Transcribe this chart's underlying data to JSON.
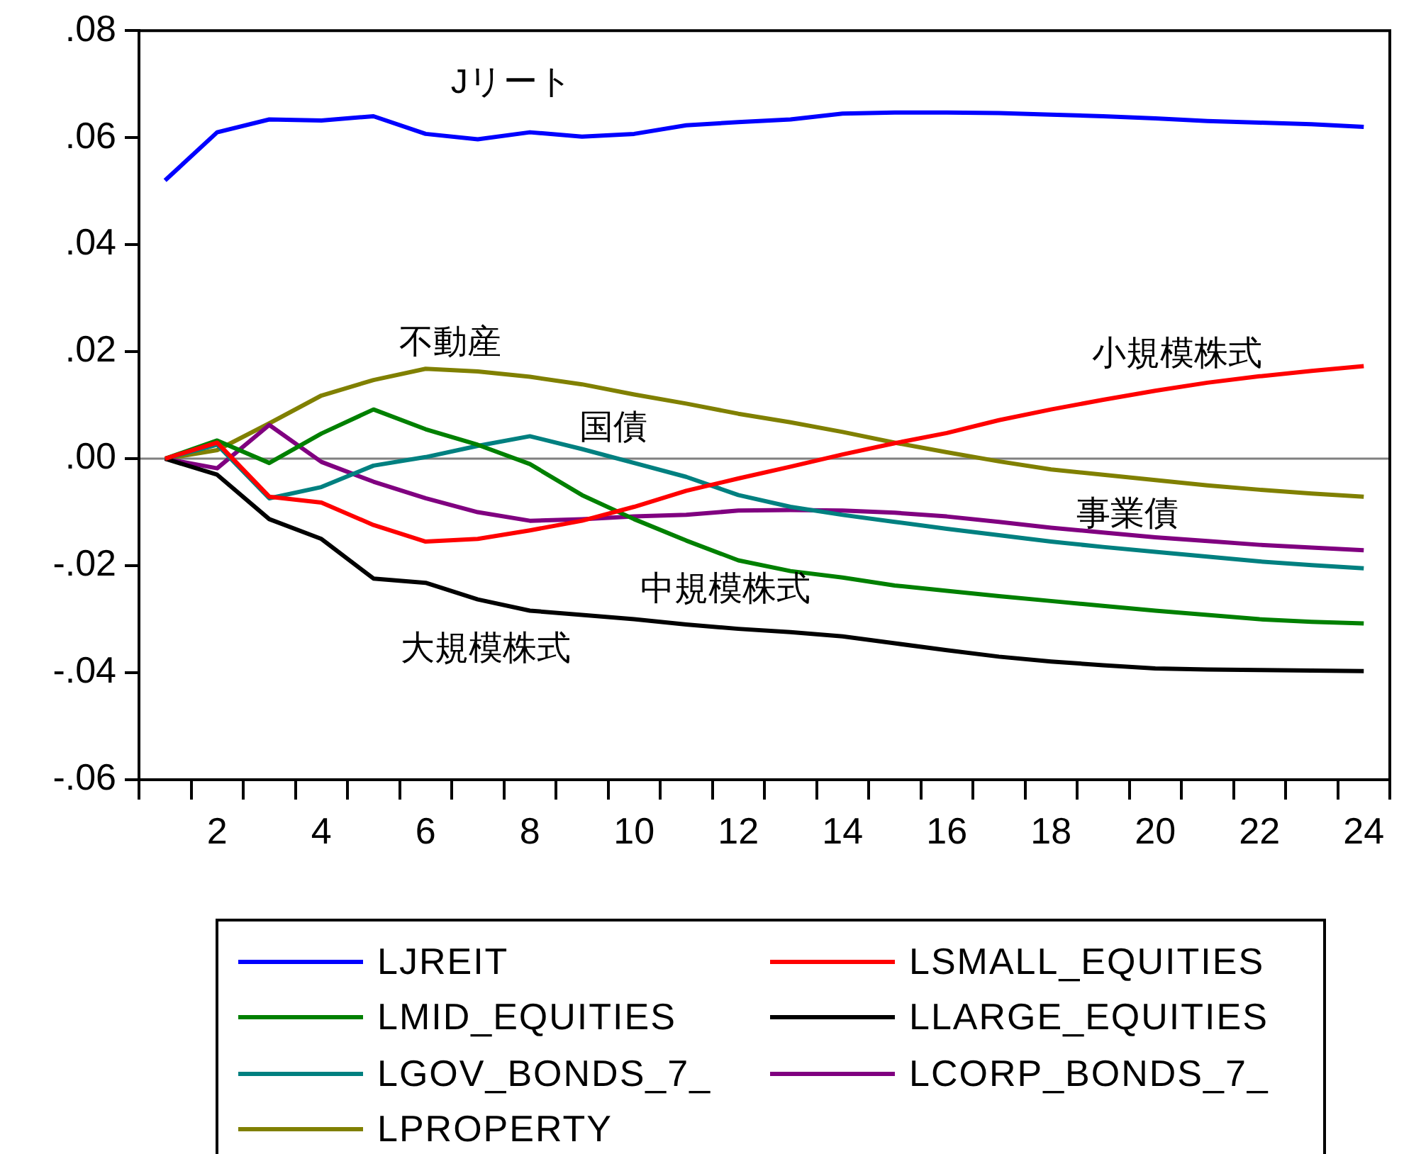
{
  "chart_data": {
    "type": "line",
    "x": [
      1,
      2,
      3,
      4,
      5,
      6,
      7,
      8,
      9,
      10,
      11,
      12,
      13,
      14,
      15,
      16,
      17,
      18,
      19,
      20,
      21,
      22,
      23,
      24
    ],
    "xlim": [
      0.5,
      24.5
    ],
    "xticks": [
      {
        "value": 0.5,
        "label": null
      },
      {
        "value": 1.5,
        "label": null
      },
      2,
      {
        "value": 2.5,
        "label": null
      },
      {
        "value": 3.5,
        "label": null
      },
      4,
      {
        "value": 4.5,
        "label": null
      },
      {
        "value": 5.5,
        "label": null
      },
      6,
      {
        "value": 6.5,
        "label": null
      },
      {
        "value": 7.5,
        "label": null
      },
      8,
      {
        "value": 8.5,
        "label": null
      },
      {
        "value": 9.5,
        "label": null
      },
      10,
      {
        "value": 10.5,
        "label": null
      },
      {
        "value": 11.5,
        "label": null
      },
      12,
      {
        "value": 12.5,
        "label": null
      },
      {
        "value": 13.5,
        "label": null
      },
      14,
      {
        "value": 14.5,
        "label": null
      },
      {
        "value": 15.5,
        "label": null
      },
      16,
      {
        "value": 16.5,
        "label": null
      },
      {
        "value": 17.5,
        "label": null
      },
      18,
      {
        "value": 18.5,
        "label": null
      },
      {
        "value": 19.5,
        "label": null
      },
      20,
      {
        "value": 20.5,
        "label": null
      },
      {
        "value": 21.5,
        "label": null
      },
      22,
      {
        "value": 22.5,
        "label": null
      },
      {
        "value": 23.5,
        "label": null
      },
      24,
      {
        "value": 24.5,
        "label": null
      }
    ],
    "series": [
      {
        "name": "LJREIT",
        "color": "#0000ff",
        "values": [
          0.052,
          0.061,
          0.0634,
          0.0632,
          0.064,
          0.0607,
          0.0597,
          0.061,
          0.0602,
          0.0607,
          0.0623,
          0.0629,
          0.0634,
          0.0645,
          0.0647,
          0.0647,
          0.0646,
          0.0643,
          0.064,
          0.0636,
          0.0631,
          0.0628,
          0.0625,
          0.062
        ]
      },
      {
        "name": "LSMALL_EQUITIES",
        "color": "#ff0000",
        "values": [
          0,
          0.003,
          -0.0071,
          -0.0082,
          -0.0124,
          -0.0155,
          -0.015,
          -0.0134,
          -0.0116,
          -0.009,
          -0.006,
          -0.0037,
          -0.0015,
          0.0008,
          0.0029,
          0.0048,
          0.0072,
          0.0092,
          0.011,
          0.0127,
          0.0142,
          0.0154,
          0.0164,
          0.0173
        ]
      },
      {
        "name": "LMID_EQUITIES",
        "color": "#008000",
        "values": [
          0,
          0.0034,
          -0.0008,
          0.0047,
          0.0092,
          0.0055,
          0.0026,
          -0.001,
          -0.0068,
          -0.0113,
          -0.0153,
          -0.019,
          -0.021,
          -0.0222,
          -0.0237,
          -0.0247,
          -0.0257,
          -0.0266,
          -0.0275,
          -0.0284,
          -0.0292,
          -0.03,
          -0.0305,
          -0.0308
        ]
      },
      {
        "name": "LLARGE_EQUITIES",
        "color": "#000000",
        "values": [
          0,
          -0.003,
          -0.0113,
          -0.015,
          -0.0224,
          -0.0232,
          -0.0263,
          -0.0284,
          -0.0292,
          -0.03,
          -0.031,
          -0.0318,
          -0.0324,
          -0.0332,
          -0.0345,
          -0.0358,
          -0.037,
          -0.0379,
          -0.0386,
          -0.0392,
          -0.0394,
          -0.0395,
          -0.0396,
          -0.0397
        ]
      },
      {
        "name": "LGOV_BONDS_7_",
        "color": "#008080",
        "values": [
          0,
          0.0026,
          -0.0074,
          -0.0053,
          -0.0013,
          0.0003,
          0.0024,
          0.0042,
          0.0018,
          -0.0008,
          -0.0034,
          -0.0068,
          -0.009,
          -0.0105,
          -0.0118,
          -0.0131,
          -0.0143,
          -0.0155,
          -0.0165,
          -0.0174,
          -0.0183,
          -0.0192,
          -0.0199,
          -0.0205
        ]
      },
      {
        "name": "LCORP_BONDS_7_",
        "color": "#800080",
        "values": [
          0,
          -0.0018,
          0.0063,
          -0.0006,
          -0.0043,
          -0.0074,
          -0.01,
          -0.0116,
          -0.0113,
          -0.0108,
          -0.0105,
          -0.0097,
          -0.0096,
          -0.0097,
          -0.0101,
          -0.0108,
          -0.0118,
          -0.0129,
          -0.0138,
          -0.0147,
          -0.0154,
          -0.0161,
          -0.0166,
          -0.0171
        ]
      },
      {
        "name": "LPROPERTY",
        "color": "#808000",
        "values": [
          0,
          0.0016,
          0.0066,
          0.0118,
          0.0147,
          0.0168,
          0.0163,
          0.0153,
          0.0139,
          0.012,
          0.0103,
          0.0084,
          0.0068,
          0.005,
          0.003,
          0.0012,
          -0.0005,
          -0.002,
          -0.003,
          -0.004,
          -0.005,
          -0.0058,
          -0.0065,
          -0.0071
        ]
      }
    ],
    "ylim": [
      -0.06,
      0.08
    ],
    "yticks": [
      {
        "value": -0.06,
        "label": "-.06"
      },
      {
        "value": -0.04,
        "label": "-.04"
      },
      {
        "value": -0.02,
        "label": "-.02"
      },
      {
        "value": 0,
        "label": ".00"
      },
      {
        "value": 0.02,
        "label": ".02"
      },
      {
        "value": 0.04,
        "label": ".04"
      },
      {
        "value": 0.06,
        "label": ".06"
      },
      {
        "value": 0.08,
        "label": ".08"
      }
    ],
    "ref_lines": [
      {
        "axis": "y",
        "value": 0,
        "label": null,
        "color": "#808080"
      }
    ],
    "annotations": [
      "Jリート",
      "不動産",
      "国債",
      "小規模株式",
      "事業債",
      "中規模株式",
      "大規模株式"
    ],
    "grid": false,
    "legend": "bottom",
    "marker": "none",
    "line_style": "solid"
  }
}
